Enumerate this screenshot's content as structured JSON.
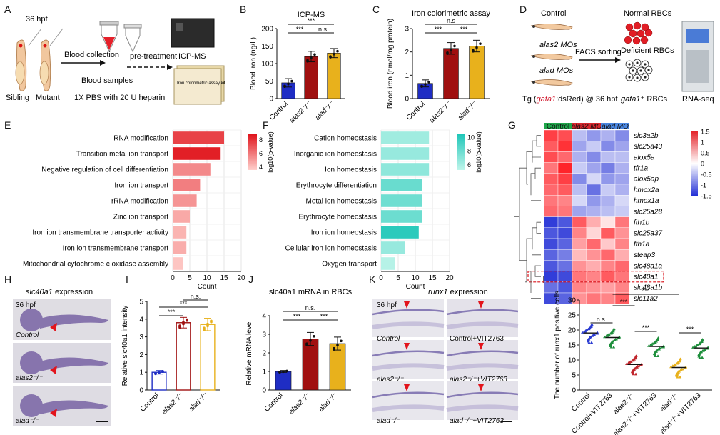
{
  "panel_letters": [
    "A",
    "B",
    "C",
    "D",
    "E",
    "F",
    "G",
    "H",
    "I",
    "J",
    "K",
    "L"
  ],
  "colors": {
    "control": "#1f2dc4",
    "alas2": "#a01010",
    "alad": "#e8b11c",
    "heat_hi": "#e4242a",
    "heat_lo": "#2330d6",
    "teal_hi": "#1fc6b8",
    "teal_lo": "#bff5ea",
    "red_hi": "#e0141c",
    "red_lo": "#ffd0cc",
    "scatter_control": "#2b3cd2",
    "scatter_control_vit": "#1e8f3c",
    "scatter_alas2": "#c0262d",
    "scatter_alas2_vit": "#1e8f3c",
    "scatter_alad": "#e8b11c",
    "scatter_alad_vit": "#1e8f3c"
  },
  "panelA": {
    "time": "36 hpf",
    "sibling": "Sibling",
    "mutant": "Mutant",
    "blood_collection": "Blood collection",
    "pretreatment": "pre-treatment",
    "blood_samples": "Blood samples",
    "pbs": "1X PBS with 20 U heparin",
    "icpms": "ICP-MS",
    "kit": "Iron colorimetric assay kit"
  },
  "panelD": {
    "control": "Control",
    "alas2_mo": "alas2 MOs",
    "alad_mo": "alad MOs",
    "facs": "FACS sorting",
    "normal": "Normal RBCs",
    "deficient": "Deficient RBCs",
    "tg": "Tg (gata1:dsRed) @ 36 hpf",
    "gata1": "gata1⁺ RBCs",
    "rnaseq": "RNA-seq"
  },
  "panelH": {
    "title": "slc40a1 expression",
    "time": "36 hpf",
    "labels": [
      "Control",
      "alas2⁻/⁻",
      "alad⁻/⁻"
    ]
  },
  "panelK": {
    "title": "runx1 expression",
    "time": "36 hpf",
    "labels": [
      "Control",
      "Control+VIT2763",
      "alas2⁻/⁻",
      "alas2⁻/⁻+VIT2763",
      "alad⁻/⁻",
      "alad⁻/⁻+VIT2763"
    ]
  },
  "chart_data": [
    {
      "panel": "B",
      "type": "bar",
      "title": "ICP-MS",
      "categories": [
        "Control",
        "alas2⁻/⁻",
        "alad⁻/⁻"
      ],
      "values": [
        45,
        120,
        130
      ],
      "errors": [
        12,
        15,
        13
      ],
      "ylabel": "Blood iron (ng/L)",
      "ylim": [
        0,
        200
      ],
      "yticks": [
        0,
        50,
        100,
        150,
        200
      ],
      "significance": [
        [
          "***",
          "Control",
          "alas2⁻/⁻"
        ],
        [
          "n.s",
          "alas2⁻/⁻",
          "alad⁻/⁻"
        ],
        [
          "***",
          "Control",
          "alad⁻/⁻"
        ]
      ]
    },
    {
      "panel": "C",
      "type": "bar",
      "title": "Iron colorimetric assay",
      "categories": [
        "Control",
        "alas2⁻/⁻",
        "alad⁻/⁻"
      ],
      "values": [
        0.65,
        2.15,
        2.25
      ],
      "errors": [
        0.15,
        0.25,
        0.25
      ],
      "ylabel": "Blood iron (nmol/mg protein)",
      "ylim": [
        0,
        3
      ],
      "yticks": [
        0,
        1,
        2,
        3
      ],
      "significance": [
        [
          "***",
          "Control",
          "alas2⁻/⁻"
        ],
        [
          "***",
          "alas2⁻/⁻",
          "alad⁻/⁻"
        ],
        [
          "n.s",
          "Control",
          "alad⁻/⁻"
        ]
      ]
    },
    {
      "panel": "E",
      "type": "bar",
      "orientation": "horizontal",
      "categories": [
        "RNA modification",
        "Transition metal ion transport",
        "Negative regulation of cell differentiation",
        "Iron ion transport",
        "rRNA modification",
        "Zinc ion transport",
        "Iron ion transmembrane transporter activity",
        "Iron ion transmembrane transport",
        "Mitochondrial cytochrome c oxidase assembly"
      ],
      "values": [
        15,
        14,
        11,
        8,
        7,
        5,
        4,
        4,
        3
      ],
      "color_values": [
        7.5,
        8.5,
        5.5,
        5.8,
        5.2,
        4.6,
        4.3,
        4.5,
        3.8
      ],
      "xlabel": "Count",
      "xlim": [
        0,
        20
      ],
      "xticks": [
        0,
        5,
        10,
        15,
        20
      ],
      "legend_title": "log10(p-value)",
      "legend_ticks": [
        8,
        6,
        4
      ]
    },
    {
      "panel": "F",
      "type": "bar",
      "orientation": "horizontal",
      "categories": [
        "Cation homeostasis",
        "Inorganic ion homeostasis",
        "Ion homeostasis",
        "Erythrocyte differentiation",
        "Metal ion homeostasis",
        "Erythrocyte homeostasis",
        "Iron ion homeostasis",
        "Cellular iron ion homeostasis",
        "Oxygen transport"
      ],
      "values": [
        14,
        14,
        14,
        12,
        12,
        12,
        11,
        7,
        4
      ],
      "color_values": [
        6.2,
        6.5,
        6.8,
        8.0,
        7.8,
        7.9,
        10.0,
        6.5,
        5.5
      ],
      "xlabel": "Count",
      "xlim": [
        0,
        20
      ],
      "xticks": [
        0,
        5,
        10,
        15,
        20
      ],
      "legend_title": "log10(p-value)",
      "legend_ticks": [
        10,
        8,
        6
      ]
    },
    {
      "panel": "G",
      "type": "heatmap",
      "groups": [
        "Control",
        "alas2 MO",
        "alad MO"
      ],
      "rows": [
        "slc3a2b",
        "slc25a43",
        "alox5a",
        "tfr1a",
        "alox5ap",
        "hmox2a",
        "hmox1a",
        "slc25a28",
        "fth1b",
        "slc25a37",
        "fth1a",
        "steap3",
        "slc48a1a",
        "slc40a1",
        "slc48a1b",
        "slc11a2"
      ],
      "values": [
        [
          1.4,
          1.3,
          -0.5,
          -0.8,
          -0.6,
          -0.9
        ],
        [
          1.2,
          1.5,
          -0.7,
          -0.4,
          -0.9,
          -0.7
        ],
        [
          1.3,
          1.1,
          -0.6,
          -0.9,
          -0.5,
          -0.5
        ],
        [
          1.0,
          1.6,
          -0.4,
          -0.7,
          -1.0,
          -0.6
        ],
        [
          1.2,
          1.4,
          -0.9,
          -0.3,
          -0.8,
          -0.7
        ],
        [
          1.1,
          1.2,
          -0.5,
          -1.1,
          -0.4,
          -0.6
        ],
        [
          1.0,
          0.9,
          -0.3,
          -0.8,
          -0.6,
          -0.3
        ],
        [
          1.1,
          1.0,
          -0.7,
          -0.6,
          -0.5,
          -0.4
        ],
        [
          -1.5,
          -1.3,
          1.2,
          0.6,
          0.2,
          1.0
        ],
        [
          -1.3,
          -1.4,
          0.9,
          0.3,
          1.2,
          0.8
        ],
        [
          -1.4,
          -1.2,
          0.7,
          1.1,
          0.4,
          0.9
        ],
        [
          -1.2,
          -1.0,
          0.5,
          0.8,
          1.1,
          0.6
        ],
        [
          -1.3,
          -1.1,
          0.8,
          0.6,
          0.9,
          1.1
        ],
        [
          -1.5,
          -1.4,
          1.0,
          0.9,
          1.2,
          1.0
        ],
        [
          -1.1,
          -1.3,
          0.9,
          0.8,
          0.7,
          0.9
        ],
        [
          -1.4,
          -1.2,
          0.8,
          1.0,
          0.9,
          1.2
        ]
      ],
      "scale_ticks": [
        1.5,
        1,
        0.5,
        0,
        -0.5,
        -1,
        -1.5
      ]
    },
    {
      "panel": "I",
      "type": "bar",
      "categories": [
        "Control",
        "alas2⁻/⁻",
        "alad⁻/⁻"
      ],
      "values": [
        1.0,
        3.8,
        3.7
      ],
      "errors": [
        0.1,
        0.3,
        0.35
      ],
      "ylabel": "Relative slc40a1 intensity",
      "ylim": [
        0,
        5
      ],
      "yticks": [
        0,
        1,
        2,
        3,
        4,
        5
      ],
      "significance": [
        [
          "***",
          "Control",
          "alas2⁻/⁻"
        ],
        [
          "***",
          "Control",
          "alad⁻/⁻"
        ],
        [
          "n.s.",
          "alas2⁻/⁻",
          "alad⁻/⁻"
        ]
      ]
    },
    {
      "panel": "J",
      "type": "bar",
      "title": "slc40a1 mRNA in RBCs",
      "categories": [
        "Control",
        "alas2⁻/⁻",
        "alad⁻/⁻"
      ],
      "values": [
        1.0,
        2.75,
        2.5
      ],
      "errors": [
        0.05,
        0.35,
        0.35
      ],
      "ylabel": "Relative mRNA level",
      "ylim": [
        0,
        4
      ],
      "yticks": [
        0,
        1,
        2,
        3,
        4
      ],
      "significance": [
        [
          "***",
          "Control",
          "alas2⁻/⁻"
        ],
        [
          "***",
          "alas2⁻/⁻",
          "alad⁻/⁻"
        ],
        [
          "n.s.",
          "Control",
          "alad⁻/⁻"
        ]
      ]
    },
    {
      "panel": "L",
      "type": "scatter",
      "categories": [
        "Control",
        "Control+VIT2763",
        "alas2⁻/⁻",
        "alas2⁻/⁻+VIT2763",
        "alad⁻/⁻",
        "alad⁻/⁻+VIT2763"
      ],
      "means": [
        19,
        17.5,
        8.5,
        14.5,
        7.5,
        14
      ],
      "sd": [
        2,
        2,
        2,
        2,
        2,
        2
      ],
      "ylabel": "The number of runx1 positive cells",
      "ylim": [
        0,
        30
      ],
      "yticks": [
        0,
        5,
        10,
        15,
        20,
        25,
        30
      ],
      "significance": [
        [
          "n.s.",
          "Control",
          "Control+VIT2763"
        ],
        [
          "***",
          "alas2⁻/⁻",
          "alas2⁻/⁻+VIT2763"
        ],
        [
          "***",
          "alad⁻/⁻",
          "alad⁻/⁻+VIT2763"
        ],
        [
          "***",
          "Control+VIT2763",
          "alas2⁻/⁻"
        ],
        [
          "***",
          "Control+VIT2763",
          "alad⁻/⁻"
        ]
      ]
    }
  ]
}
